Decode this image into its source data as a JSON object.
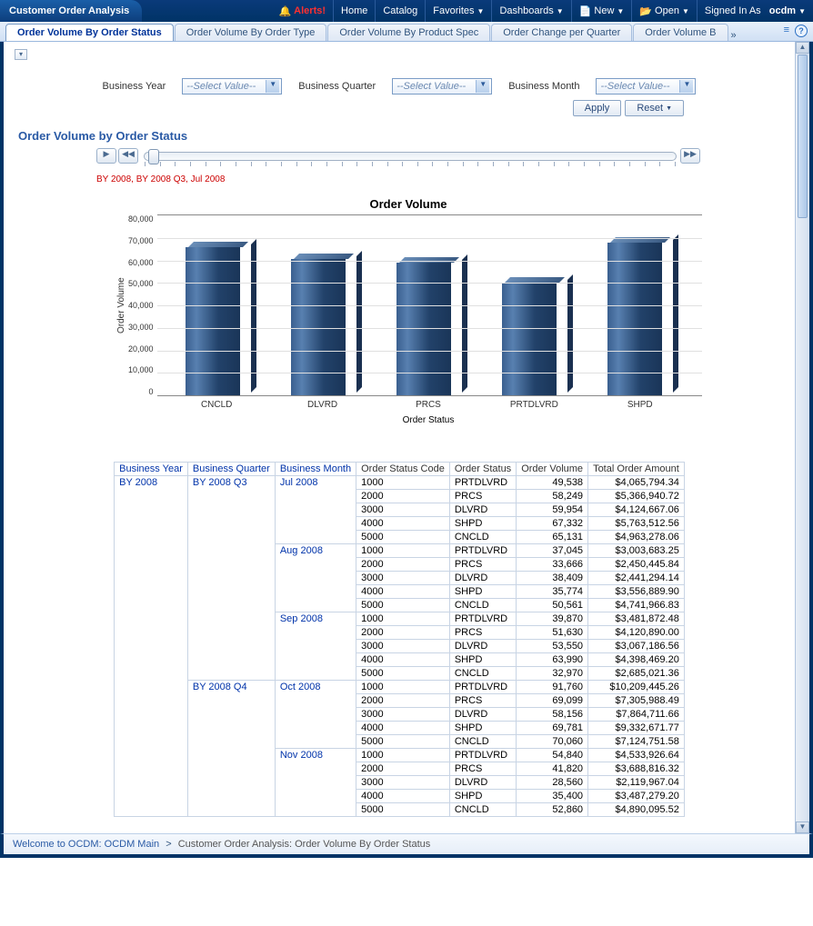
{
  "topnav": {
    "pageTitle": "Customer Order Analysis",
    "alerts": "Alerts!",
    "items": [
      {
        "label": "Home",
        "dd": false
      },
      {
        "label": "Catalog",
        "dd": false
      },
      {
        "label": "Favorites",
        "dd": true
      },
      {
        "label": "Dashboards",
        "dd": true
      }
    ],
    "newLabel": "New",
    "openLabel": "Open",
    "signedInText": "Signed In As",
    "user": "ocdm"
  },
  "tabs": [
    {
      "label": "Order Volume By Order Status",
      "active": true
    },
    {
      "label": "Order Volume By Order Type",
      "active": false
    },
    {
      "label": "Order Volume By Product Spec",
      "active": false
    },
    {
      "label": "Order Change per Quarter",
      "active": false
    },
    {
      "label": "Order Volume B",
      "active": false
    }
  ],
  "filters": {
    "labels": [
      "Business Year",
      "Business Quarter",
      "Business Month"
    ],
    "placeholder": "--Select Value--",
    "applyLabel": "Apply",
    "resetLabel": "Reset"
  },
  "sectionTitle": "Order Volume by Order Status",
  "slider": {
    "label": "BY 2008, BY 2008 Q3, Jul 2008",
    "tickCount": 36
  },
  "chart": {
    "title": "Order Volume",
    "yLabel": "Order Volume",
    "xLabel": "Order Status",
    "yMax": 80000,
    "yStep": 10000,
    "barColor": "#24486f",
    "gridColor": "#e0e0e0",
    "categories": [
      "CNCLD",
      "DLVRD",
      "PRCS",
      "PRTDLVRD",
      "SHPD"
    ],
    "values": [
      65131,
      59954,
      58249,
      49538,
      67332
    ]
  },
  "table": {
    "headers": [
      "Business Year",
      "Business Quarter",
      "Business Month",
      "Order Status Code",
      "Order Status",
      "Order Volume",
      "Total Order Amount"
    ],
    "groups": [
      {
        "year": "BY 2008",
        "quarters": [
          {
            "quarter": "BY 2008 Q3",
            "months": [
              {
                "month": "Jul 2008",
                "rows": [
                  {
                    "code": "1000",
                    "status": "PRTDLVRD",
                    "vol": "49,538",
                    "amt": "$4,065,794.34"
                  },
                  {
                    "code": "2000",
                    "status": "PRCS",
                    "vol": "58,249",
                    "amt": "$5,366,940.72"
                  },
                  {
                    "code": "3000",
                    "status": "DLVRD",
                    "vol": "59,954",
                    "amt": "$4,124,667.06"
                  },
                  {
                    "code": "4000",
                    "status": "SHPD",
                    "vol": "67,332",
                    "amt": "$5,763,512.56"
                  },
                  {
                    "code": "5000",
                    "status": "CNCLD",
                    "vol": "65,131",
                    "amt": "$4,963,278.06"
                  }
                ]
              },
              {
                "month": "Aug 2008",
                "rows": [
                  {
                    "code": "1000",
                    "status": "PRTDLVRD",
                    "vol": "37,045",
                    "amt": "$3,003,683.25"
                  },
                  {
                    "code": "2000",
                    "status": "PRCS",
                    "vol": "33,666",
                    "amt": "$2,450,445.84"
                  },
                  {
                    "code": "3000",
                    "status": "DLVRD",
                    "vol": "38,409",
                    "amt": "$2,441,294.14"
                  },
                  {
                    "code": "4000",
                    "status": "SHPD",
                    "vol": "35,774",
                    "amt": "$3,556,889.90"
                  },
                  {
                    "code": "5000",
                    "status": "CNCLD",
                    "vol": "50,561",
                    "amt": "$4,741,966.83"
                  }
                ]
              },
              {
                "month": "Sep 2008",
                "rows": [
                  {
                    "code": "1000",
                    "status": "PRTDLVRD",
                    "vol": "39,870",
                    "amt": "$3,481,872.48"
                  },
                  {
                    "code": "2000",
                    "status": "PRCS",
                    "vol": "51,630",
                    "amt": "$4,120,890.00"
                  },
                  {
                    "code": "3000",
                    "status": "DLVRD",
                    "vol": "53,550",
                    "amt": "$3,067,186.56"
                  },
                  {
                    "code": "4000",
                    "status": "SHPD",
                    "vol": "63,990",
                    "amt": "$4,398,469.20"
                  },
                  {
                    "code": "5000",
                    "status": "CNCLD",
                    "vol": "32,970",
                    "amt": "$2,685,021.36"
                  }
                ]
              }
            ]
          },
          {
            "quarter": "BY 2008 Q4",
            "months": [
              {
                "month": "Oct 2008",
                "rows": [
                  {
                    "code": "1000",
                    "status": "PRTDLVRD",
                    "vol": "91,760",
                    "amt": "$10,209,445.26"
                  },
                  {
                    "code": "2000",
                    "status": "PRCS",
                    "vol": "69,099",
                    "amt": "$7,305,988.49"
                  },
                  {
                    "code": "3000",
                    "status": "DLVRD",
                    "vol": "58,156",
                    "amt": "$7,864,711.66"
                  },
                  {
                    "code": "4000",
                    "status": "SHPD",
                    "vol": "69,781",
                    "amt": "$9,332,671.77"
                  },
                  {
                    "code": "5000",
                    "status": "CNCLD",
                    "vol": "70,060",
                    "amt": "$7,124,751.58"
                  }
                ]
              },
              {
                "month": "Nov 2008",
                "rows": [
                  {
                    "code": "1000",
                    "status": "PRTDLVRD",
                    "vol": "54,840",
                    "amt": "$4,533,926.64"
                  },
                  {
                    "code": "2000",
                    "status": "PRCS",
                    "vol": "41,820",
                    "amt": "$3,688,816.32"
                  },
                  {
                    "code": "3000",
                    "status": "DLVRD",
                    "vol": "28,560",
                    "amt": "$2,119,967.04"
                  },
                  {
                    "code": "4000",
                    "status": "SHPD",
                    "vol": "35,400",
                    "amt": "$3,487,279.20"
                  },
                  {
                    "code": "5000",
                    "status": "CNCLD",
                    "vol": "52,860",
                    "amt": "$4,890,095.52"
                  }
                ]
              }
            ]
          }
        ]
      }
    ]
  },
  "footer": {
    "welcome": "Welcome to OCDM: OCDM Main",
    "current": "Customer Order Analysis: Order Volume By Order Status"
  }
}
